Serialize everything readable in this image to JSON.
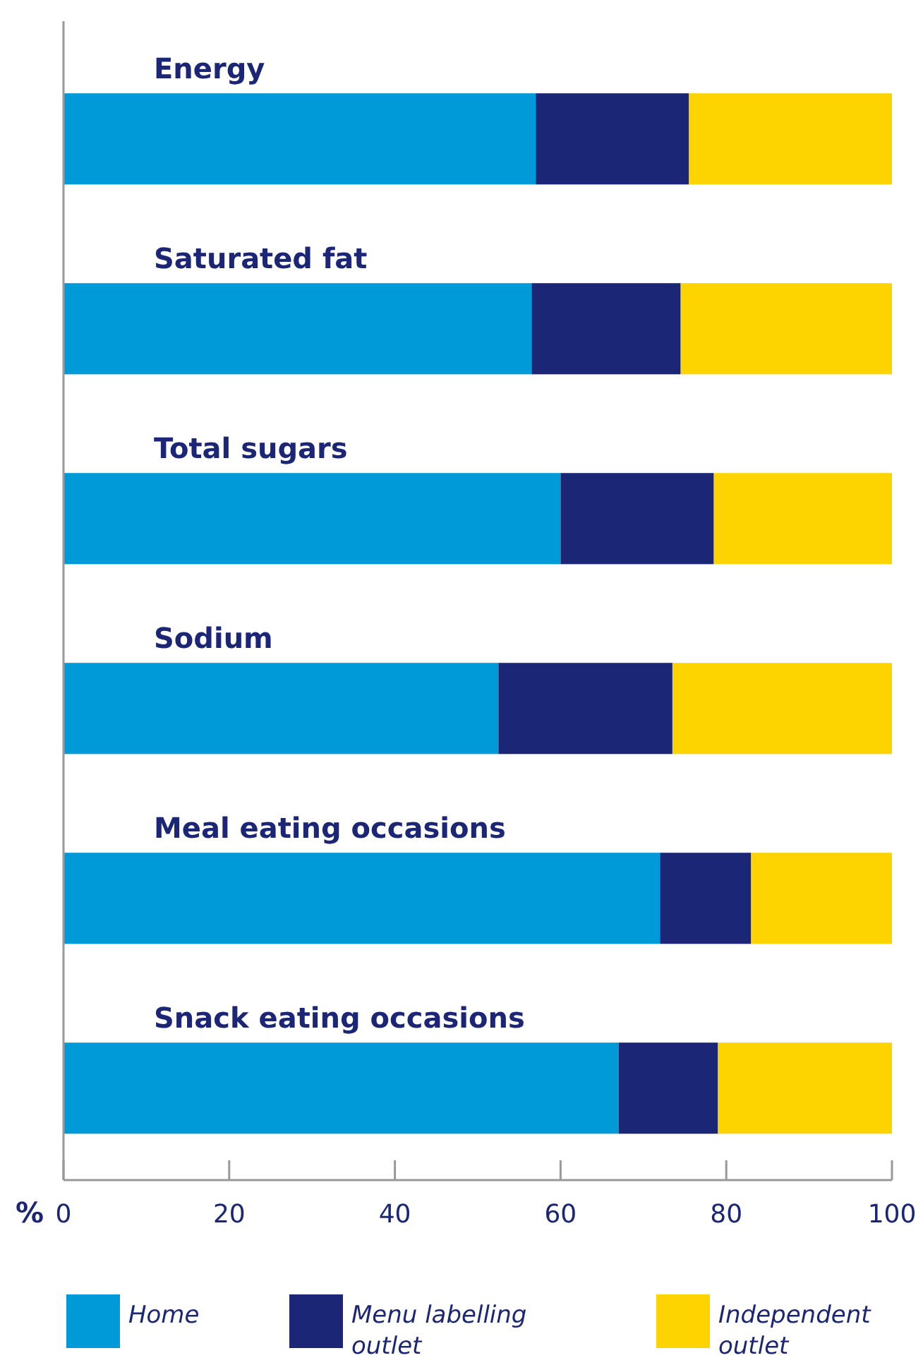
{
  "chart_data": {
    "type": "bar",
    "orientation": "horizontal",
    "stacked": true,
    "xlabel": "%",
    "categories": [
      "Energy",
      "Saturated fat",
      "Total sugars",
      "Sodium",
      "Meal eating occasions",
      "Snack eating occasions"
    ],
    "series": [
      {
        "name": "Home",
        "color": "#009ad9",
        "values": [
          57,
          56.5,
          60,
          52.5,
          72,
          67
        ]
      },
      {
        "name": "Menu labelling outlet",
        "color": "#1c2676",
        "values": [
          18.5,
          18,
          18.5,
          21,
          11,
          12
        ]
      },
      {
        "name": "Independent outlet",
        "color": "#fdd300",
        "values": [
          24.5,
          25.5,
          21.5,
          26.5,
          17,
          21
        ]
      }
    ],
    "xlim": [
      0,
      100
    ],
    "xticks": [
      0,
      20,
      40,
      60,
      80,
      100
    ],
    "grid": false,
    "legend": "bottom"
  }
}
